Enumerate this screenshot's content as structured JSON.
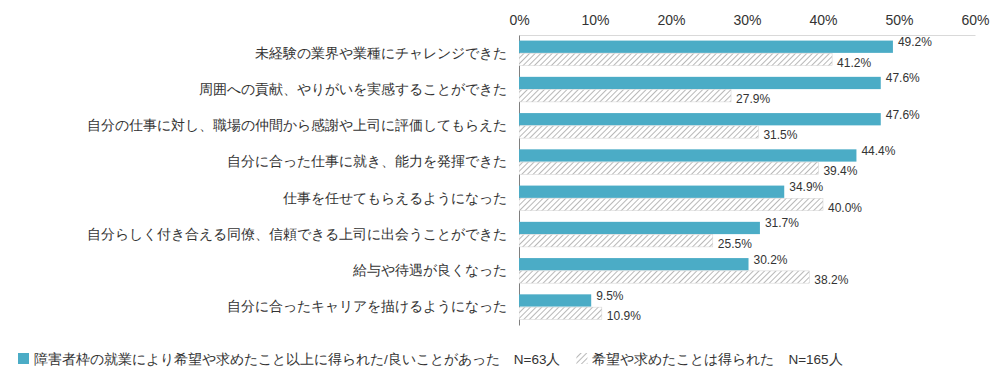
{
  "chart_data": {
    "type": "bar",
    "orientation": "horizontal",
    "categories": [
      "未経験の業界や業種にチャレンジできた",
      "周囲への貢献、やりがいを実感することができた",
      "自分の仕事に対し、職場の仲間から感謝や上司に評価してもらえた",
      "自分に合った仕事に就き、能力を発揮できた",
      "仕事を任せてもらえるようになった",
      "自分らしく付き合える同僚、信頼できる上司に出会うことができた",
      "給与や待遇が良くなった",
      "自分に合ったキャリアを描けるようになった"
    ],
    "series": [
      {
        "name": "障害者枠の就業により希望や求めたこと以上に得られた/良いことがあった　N=63人",
        "color": "#4bacc6",
        "values": [
          49.2,
          47.6,
          47.6,
          44.4,
          34.9,
          31.7,
          30.2,
          9.5
        ],
        "value_labels": [
          "49.2%",
          "47.6%",
          "47.6%",
          "44.4%",
          "34.9%",
          "31.7%",
          "30.2%",
          "9.5%"
        ]
      },
      {
        "name": "希望や求めたことは得られた　N=165人",
        "color": "#a6a6a6",
        "values": [
          41.2,
          27.9,
          31.5,
          39.4,
          40.0,
          25.5,
          38.2,
          10.9
        ],
        "value_labels": [
          "41.2%",
          "27.9%",
          "31.5%",
          "39.4%",
          "40.0%",
          "25.5%",
          "38.2%",
          "10.9%"
        ]
      }
    ],
    "xlim": [
      0,
      60
    ],
    "xticks": [
      {
        "value": 0,
        "label": "0%"
      },
      {
        "value": 10,
        "label": "10%"
      },
      {
        "value": 20,
        "label": "20%"
      },
      {
        "value": 30,
        "label": "30%"
      },
      {
        "value": 40,
        "label": "40%"
      },
      {
        "value": 50,
        "label": "50%"
      },
      {
        "value": 60,
        "label": "60%"
      }
    ],
    "grid": false,
    "data_labels": true,
    "legend": "bottom"
  }
}
